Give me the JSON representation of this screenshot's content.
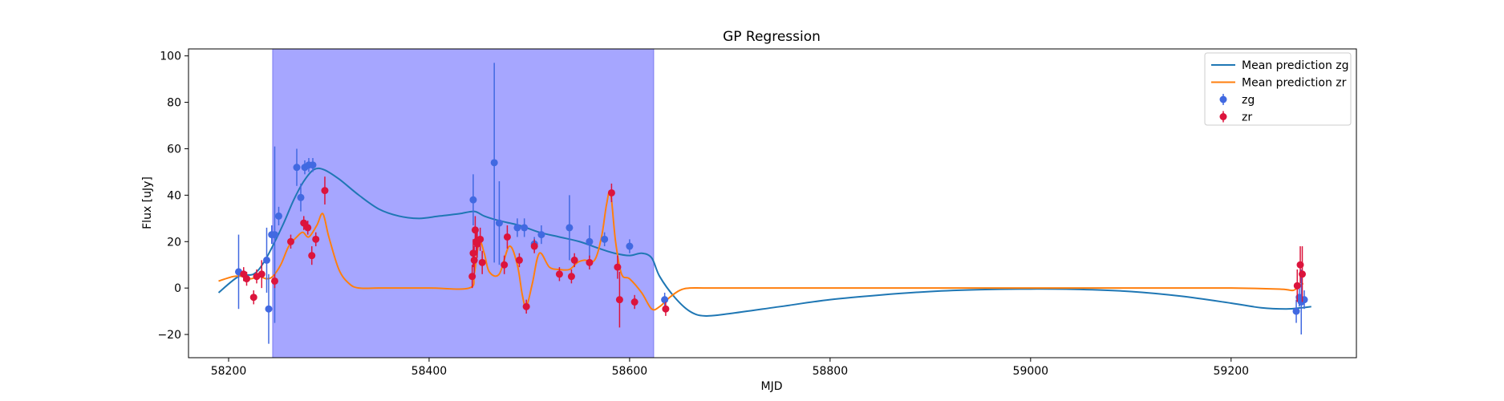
{
  "chart_data": {
    "type": "scatter",
    "title": "GP Regression",
    "xlabel": "MJD",
    "ylabel": "Flux [uJy]",
    "xlim": [
      58160,
      59325
    ],
    "ylim": [
      -30,
      103
    ],
    "xticks": [
      58200,
      58400,
      58600,
      58800,
      59000,
      59200
    ],
    "yticks": [
      -20,
      0,
      20,
      40,
      60,
      80,
      100
    ],
    "grid": false,
    "legend_position": "top-right",
    "shaded_region": {
      "x0": 58244,
      "x1": 58624,
      "color": "#a6a6ff"
    },
    "series": [
      {
        "name": "Mean prediction zg",
        "kind": "line",
        "color": "#1f77b4",
        "x": [
          58190,
          58210,
          58225,
          58235,
          58245,
          58255,
          58265,
          58275,
          58285,
          58295,
          58310,
          58330,
          58350,
          58370,
          58390,
          58410,
          58430,
          58445,
          58455,
          58470,
          58490,
          58510,
          58530,
          58550,
          58570,
          58585,
          58600,
          58612,
          58622,
          58630,
          58645,
          58660,
          58675,
          58700,
          58750,
          58800,
          58850,
          58900,
          58950,
          59000,
          59050,
          59100,
          59150,
          59200,
          59230,
          59255,
          59270,
          59280
        ],
        "y": [
          -2,
          5,
          6,
          11,
          19,
          28,
          38,
          46,
          51,
          51,
          47,
          40,
          34,
          31,
          30,
          31,
          32,
          33,
          31,
          29,
          27,
          24,
          22,
          20,
          17,
          15,
          14,
          15,
          13,
          5,
          -4,
          -10,
          -12,
          -11,
          -8,
          -5,
          -3,
          -1.5,
          -0.7,
          -0.4,
          -0.6,
          -1.5,
          -3.5,
          -6.5,
          -8.5,
          -9,
          -8.5,
          -8
        ]
      },
      {
        "name": "Mean prediction zr",
        "kind": "line",
        "color": "#ff7f0e",
        "x": [
          58190,
          58205,
          58215,
          58222,
          58230,
          58238,
          58244,
          58252,
          58260,
          58268,
          58274,
          58280,
          58288,
          58294,
          58300,
          58310,
          58320,
          58330,
          58350,
          58400,
          58440,
          58445,
          58450,
          58455,
          58460,
          58470,
          58480,
          58488,
          58493,
          58497,
          58503,
          58510,
          58520,
          58530,
          58540,
          58548,
          58555,
          58565,
          58572,
          58577,
          58581,
          58586,
          58592,
          58600,
          58612,
          58622,
          58630,
          58640,
          58650,
          58660,
          58680,
          58750,
          58900,
          59100,
          59200,
          59250,
          59262,
          59268,
          59272
        ],
        "y": [
          3,
          5,
          5,
          4,
          5,
          4,
          5,
          10,
          18,
          22,
          24,
          22,
          27,
          32,
          22,
          8,
          2,
          0,
          0,
          0,
          0,
          6,
          20,
          15,
          7,
          6,
          18,
          10,
          -3,
          -8,
          2,
          15,
          9,
          8,
          8,
          11,
          12,
          12,
          22,
          36,
          41,
          20,
          6,
          4,
          -2,
          -9,
          -8,
          -4,
          -1,
          0,
          0,
          0,
          0,
          0,
          0,
          -0.5,
          -1,
          1,
          2
        ]
      },
      {
        "name": "zg",
        "kind": "errorbar",
        "color": "#4169e1",
        "x": [
          58210,
          58238,
          58240,
          58243,
          58246,
          58250,
          58268,
          58272,
          58276,
          58280,
          58284,
          58444,
          58465,
          58470,
          58488,
          58495,
          58505,
          58512,
          58540,
          58560,
          58575,
          58600,
          58635,
          59265,
          59268,
          59270,
          59273
        ],
        "y": [
          7,
          12,
          -9,
          23,
          23,
          31,
          52,
          39,
          52,
          53,
          53,
          38,
          54,
          28,
          26,
          26,
          19,
          23,
          26,
          20,
          21,
          18,
          -5,
          -10,
          -4,
          -6,
          -5
        ],
        "yerr": [
          16,
          14,
          15,
          4,
          38,
          4,
          8,
          6,
          3,
          3,
          3,
          11,
          43,
          18,
          4,
          4,
          3,
          4,
          14,
          7,
          3,
          3,
          3,
          5,
          4,
          14,
          4
        ]
      },
      {
        "name": "zr",
        "kind": "errorbar",
        "color": "#dc143c",
        "x": [
          58215,
          58218,
          58225,
          58228,
          58233,
          58246,
          58262,
          58275,
          58279,
          58283,
          58287,
          58296,
          58443,
          58444,
          58445,
          58446,
          58447,
          58448,
          58451,
          58453,
          58475,
          58478,
          58490,
          58497,
          58505,
          58530,
          58542,
          58545,
          58560,
          58582,
          58588,
          58590,
          58605,
          58636,
          59266,
          59269,
          59271
        ],
        "y": [
          6,
          4,
          -4,
          5,
          6,
          3,
          20,
          28,
          26,
          14,
          21,
          42,
          5,
          15,
          12,
          25,
          20,
          19,
          21,
          11,
          10,
          22,
          12,
          -8,
          18,
          6,
          5,
          12,
          11,
          41,
          9,
          -5,
          -6,
          -9,
          1,
          10,
          6
        ],
        "yerr": [
          3,
          3,
          3,
          3,
          6,
          3,
          3,
          3,
          3,
          4,
          3,
          6,
          5,
          6,
          6,
          6,
          6,
          6,
          5,
          5,
          4,
          5,
          3,
          3,
          3,
          3,
          3,
          3,
          3,
          4,
          5,
          12,
          3,
          3,
          7,
          8,
          12
        ]
      }
    ]
  }
}
